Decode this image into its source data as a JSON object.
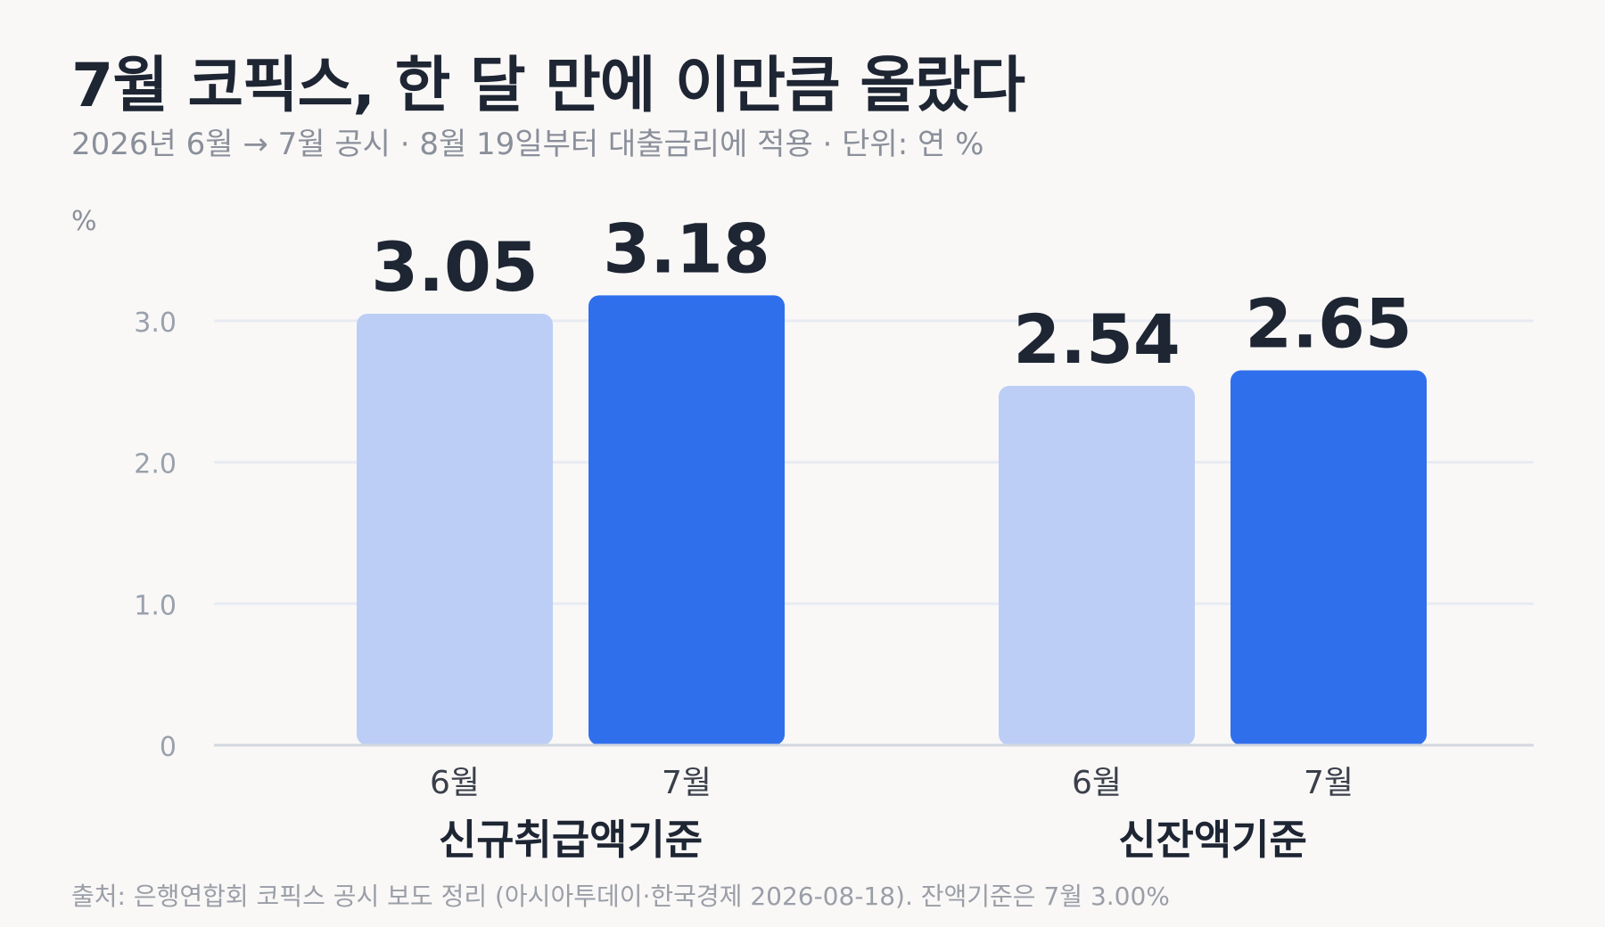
{
  "title": "7월 코픽스, 한 달 만에 이만큼 올랐다",
  "subtitle": "2026년 6월 → 7월 공시 · 8월 19일부터 대출금리에 적용 · 단위: 연 %",
  "source": "출처: 은행연합회 코픽스 공시 보도 정리 (아시아투데이·한국경제 2026-08-18). 잔액기준은 7월 3.00%",
  "colors": {
    "june": "#bccef5",
    "july": "#306fec",
    "grid": "#e8ebf2",
    "axis": "#d3d7df",
    "text": "#1e2533",
    "muted": "#8a8f9a"
  },
  "chart_data": {
    "type": "bar",
    "ylabel": "%",
    "ylim": [
      0,
      3.2
    ],
    "yticks": [
      0,
      1.0,
      2.0,
      3.0
    ],
    "ytick_labels": [
      "0",
      "1.0",
      "2.0",
      "3.0"
    ],
    "grid": true,
    "groups": [
      {
        "name": "신규취급액기준",
        "bars": [
          {
            "label": "6월",
            "value": 3.05,
            "value_label": "3.05",
            "series": "june"
          },
          {
            "label": "7월",
            "value": 3.18,
            "value_label": "3.18",
            "series": "july"
          }
        ]
      },
      {
        "name": "신잔액기준",
        "bars": [
          {
            "label": "6월",
            "value": 2.54,
            "value_label": "2.54",
            "series": "june"
          },
          {
            "label": "7월",
            "value": 2.65,
            "value_label": "2.65",
            "series": "july"
          }
        ]
      }
    ]
  }
}
